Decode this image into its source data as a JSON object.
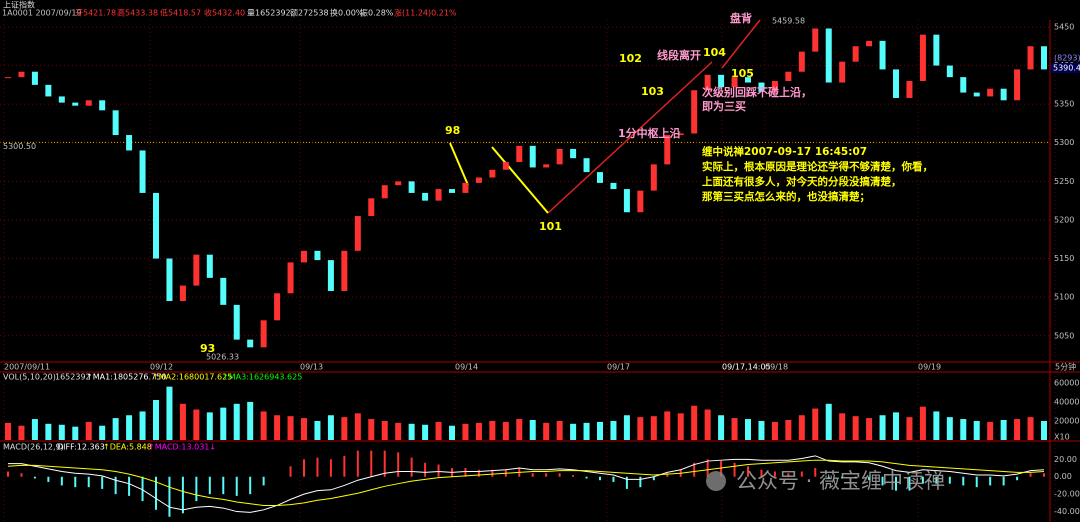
{
  "chart_data": {
    "type": "candlestick",
    "title": "上证指数",
    "header": [
      "1A0001 2007/09/19",
      "开5421.78",
      "高5433.38",
      "低5418.57",
      "收5432.40",
      "量1652392",
      "额272538",
      "换0.00%",
      "振0.28%",
      "涨(11.24)0.21%"
    ],
    "close": [
      5385,
      5392,
      5375,
      5360,
      5352,
      5348,
      5355,
      5342,
      5310,
      5290,
      5235,
      5150,
      5095,
      5115,
      5155,
      5125,
      5090,
      5045,
      5035,
      5070,
      5105,
      5145,
      5160,
      5148,
      5108,
      5160,
      5205,
      5228,
      5245,
      5250,
      5235,
      5225,
      5240,
      5235,
      5248,
      5255,
      5265,
      5275,
      5296,
      5268,
      5272,
      5292,
      5280,
      5262,
      5248,
      5240,
      5210,
      5238,
      5272,
      5310,
      5312,
      5368,
      5388,
      5372,
      5385,
      5378,
      5366,
      5380,
      5392,
      5418,
      5448,
      5378,
      5405,
      5425,
      5432,
      5395,
      5358,
      5380,
      5440,
      5400,
      5385,
      5365,
      5360,
      5370,
      5355,
      5395,
      5425,
      5395
    ],
    "up_color": "#ff3232",
    "down_color": "#54fcfc",
    "ylim": [
      5016,
      5459
    ],
    "yticks": [
      5050,
      5100,
      5150,
      5200,
      5250,
      5300,
      5350,
      5400,
      5450
    ],
    "dates": [
      "2007/09/11",
      "09/12",
      "09/13",
      "09/14",
      "09/17",
      "09/17,14:05",
      "09/18",
      "09/19",
      "5分钟"
    ],
    "level_label": "5300.50",
    "level": 5300.5,
    "price_tag": "5390.40",
    "volume_id": "(8293)",
    "annotations": [
      "93",
      "5026.33",
      "98",
      "101",
      "102",
      "103",
      "线段离开",
      "104",
      "105",
      "盘背",
      "5459.58",
      "1分中枢上沿",
      "次级别回踩不碰上沿，",
      "即为三买",
      "缠中说禅2007-09-17 16:45:07",
      "实际上，根本原因是理论还学得不够清楚，你看，",
      "上面还有很多人，对今天的分段没搞清楚，",
      "那第三买点怎么来的，也没搞清楚；"
    ],
    "volume": {
      "header": [
        "VOL(5,10,20)",
        "1652392",
        "↑MA1:1805276.750",
        "↑MA2:1680017.625",
        "↑MA3:1626943.625"
      ],
      "values": [
        180000,
        150000,
        220000,
        170000,
        160000,
        140000,
        190000,
        150000,
        230000,
        260000,
        300000,
        420000,
        560000,
        380000,
        320000,
        290000,
        340000,
        380000,
        400000,
        300000,
        260000,
        250000,
        230000,
        200000,
        260000,
        240000,
        280000,
        220000,
        200000,
        180000,
        170000,
        160000,
        190000,
        150000,
        170000,
        180000,
        200000,
        190000,
        220000,
        210000,
        180000,
        200000,
        170000,
        180000,
        190000,
        200000,
        260000,
        240000,
        250000,
        300000,
        280000,
        360000,
        320000,
        260000,
        230000,
        220000,
        200000,
        190000,
        210000,
        260000,
        330000,
        380000,
        280000,
        250000,
        230000,
        260000,
        290000,
        240000,
        350000,
        300000,
        240000,
        220000,
        200000,
        190000,
        210000,
        220000,
        240000,
        200000
      ],
      "ylim": [
        0,
        630000
      ],
      "yticks": [
        200000,
        400000,
        600000
      ],
      "unit": "X10"
    },
    "macd": {
      "header": [
        "MACD(26,12,9)",
        "DIFF:12.363",
        "↑DEA:5.848",
        "↑MACD:13.031↓"
      ],
      "hist": [
        6,
        4,
        -2,
        -6,
        -10,
        -12,
        -12,
        -14,
        -20,
        -22,
        -28,
        -38,
        -46,
        -42,
        -28,
        -20,
        -20,
        -22,
        -20,
        -10,
        0,
        12,
        20,
        22,
        20,
        24,
        30,
        30,
        30,
        28,
        22,
        16,
        14,
        10,
        10,
        8,
        8,
        8,
        10,
        4,
        4,
        4,
        2,
        -2,
        -4,
        -6,
        -14,
        -12,
        -4,
        4,
        8,
        16,
        20,
        18,
        16,
        12,
        8,
        6,
        4,
        6,
        10,
        -2,
        -2,
        -2,
        -4,
        -10,
        -16,
        -16,
        -8,
        -8,
        -8,
        -10,
        -12,
        -10,
        -10,
        -4,
        4,
        4
      ],
      "diff": [
        15,
        15,
        12,
        9,
        6,
        4,
        3,
        1,
        -4,
        -8,
        -15,
        -25,
        -35,
        -38,
        -35,
        -34,
        -36,
        -40,
        -41,
        -38,
        -33,
        -26,
        -20,
        -16,
        -15,
        -10,
        -4,
        0,
        4,
        6,
        6,
        5,
        6,
        5,
        6,
        6,
        7,
        8,
        10,
        8,
        8,
        9,
        8,
        6,
        4,
        2,
        -3,
        -3,
        0,
        5,
        8,
        14,
        18,
        19,
        20,
        20,
        19,
        19,
        19,
        21,
        24,
        18,
        17,
        17,
        16,
        12,
        7,
        5,
        8,
        7,
        6,
        4,
        2,
        2,
        1,
        3,
        7,
        8
      ],
      "dea": [
        12,
        13,
        13,
        12,
        11,
        10,
        9,
        8,
        6,
        3,
        -1,
        -6,
        -12,
        -17,
        -21,
        -24,
        -26,
        -29,
        -31,
        -33,
        -33,
        -32,
        -30,
        -27,
        -25,
        -22,
        -19,
        -15,
        -11,
        -8,
        -5,
        -3,
        -1,
        0,
        1,
        2,
        3,
        4,
        5,
        6,
        6,
        7,
        7,
        7,
        6,
        5,
        4,
        3,
        2,
        3,
        4,
        6,
        8,
        10,
        12,
        14,
        15,
        16,
        17,
        18,
        19,
        19,
        18,
        18,
        18,
        17,
        15,
        13,
        12,
        11,
        10,
        9,
        8,
        7,
        6,
        5,
        5,
        6
      ],
      "ylim": [
        -52,
        33
      ],
      "yticks": [
        {
          "value": 20,
          "label": "20.00"
        },
        {
          "value": 0,
          "label": "0.00"
        },
        {
          "value": -20,
          "label": "-20.00"
        },
        {
          "value": -40,
          "label": "-40.00"
        }
      ]
    },
    "watermark": "公众号 · 薇宝缠中读禅"
  }
}
